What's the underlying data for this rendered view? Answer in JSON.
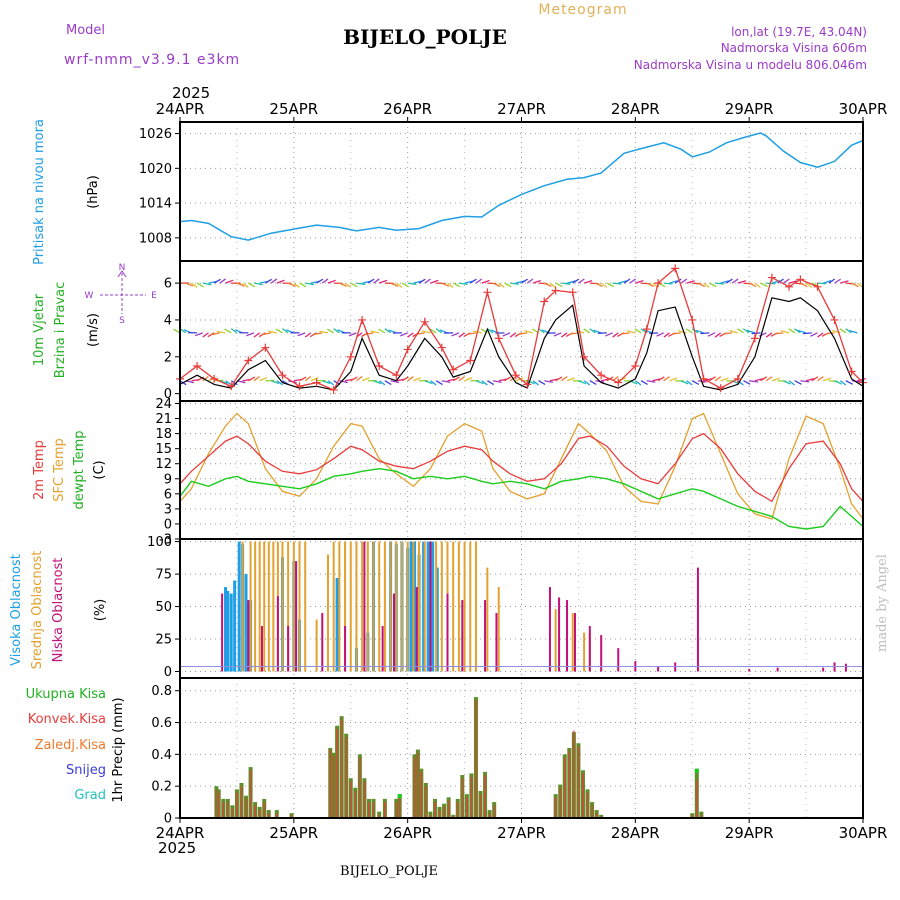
{
  "header": {
    "model_label": "Model",
    "model_name": "wrf-nmm_v3.9.1  e3km",
    "station_title": "BIJELO_POLJE",
    "meteogram_label": "Meteogram",
    "lonlat": "lon,lat (19.7E, 43.04N)",
    "elevation": "Nadmorska Visina 606m",
    "model_elevation": "Nadmorska Visina u modelu 806.046m",
    "year_top": "2025",
    "year_bottom": "2025",
    "footer_title": "BIJELO_POLJE",
    "credit": "made by Angel"
  },
  "colors": {
    "pressure": "#1e9fe6",
    "temp2m": "#e83c3c",
    "sfc": "#e3a12f",
    "dewpt": "#1ccc1c",
    "wind_label": "#22b022",
    "purple": "#9a3cc8",
    "high_cloud": "#1e9fe6",
    "mid_cloud": "#e3a12f",
    "low_cloud": "#c0127a",
    "precip_total": "#5e8f2a",
    "precip_conv": "#e83c3c",
    "precip_frozen": "#f07a2a",
    "snow": "#3c3cdc",
    "graupel": "#22c0c0"
  },
  "chart_data": [
    {
      "type": "line",
      "id": "pressure",
      "ylabel_name": "Pritisak na nivou mora",
      "ylabel_unit": "(hPa)",
      "ylim": [
        1004,
        1028
      ],
      "yticks": [
        1008,
        1014,
        1020,
        1026
      ],
      "x_days": [
        0,
        0.1,
        0.25,
        0.45,
        0.6,
        0.8,
        1.0,
        1.2,
        1.4,
        1.55,
        1.75,
        1.9,
        2.1,
        2.3,
        2.5,
        2.65,
        2.8,
        3.0,
        3.2,
        3.4,
        3.55,
        3.7,
        3.9,
        4.05,
        4.25,
        4.4,
        4.5,
        4.65,
        4.8,
        4.95,
        5.1,
        5.15,
        5.3,
        5.45,
        5.6,
        5.75,
        5.9,
        6.0
      ],
      "values": [
        1010.8,
        1011.0,
        1010.5,
        1008.2,
        1007.6,
        1008.8,
        1009.5,
        1010.2,
        1009.8,
        1009.2,
        1009.8,
        1009.3,
        1009.6,
        1011.0,
        1011.7,
        1011.6,
        1013.6,
        1015.5,
        1017.0,
        1018.1,
        1018.4,
        1019.2,
        1022.6,
        1023.4,
        1024.4,
        1023.3,
        1022.0,
        1022.8,
        1024.4,
        1025.3,
        1026.1,
        1025.6,
        1023.0,
        1021.0,
        1020.2,
        1021.2,
        1024.0,
        1024.8
      ]
    },
    {
      "type": "line",
      "id": "wind",
      "ylabel_name": "10m Vjetar",
      "ylabel_name2": "Brzina i Pravac",
      "ylabel_unit": "(m/s)",
      "compass": [
        "N",
        "E",
        "S",
        "W"
      ],
      "ylim": [
        -0.4,
        7.2
      ],
      "yticks": [
        0,
        2,
        4,
        6
      ],
      "x_days": [
        0,
        0.15,
        0.3,
        0.45,
        0.6,
        0.75,
        0.9,
        1.05,
        1.2,
        1.35,
        1.5,
        1.6,
        1.75,
        1.9,
        2.0,
        2.15,
        2.3,
        2.4,
        2.55,
        2.7,
        2.8,
        2.95,
        3.05,
        3.2,
        3.3,
        3.45,
        3.55,
        3.7,
        3.85,
        4.0,
        4.1,
        4.2,
        4.35,
        4.5,
        4.6,
        4.75,
        4.9,
        5.05,
        5.2,
        5.35,
        5.45,
        5.6,
        5.75,
        5.9,
        6.0
      ],
      "gust": [
        0.8,
        1.5,
        0.8,
        0.4,
        1.8,
        2.5,
        1.0,
        0.4,
        0.6,
        0.2,
        2.0,
        4.0,
        1.5,
        1.0,
        2.4,
        3.9,
        2.5,
        1.3,
        1.8,
        5.5,
        3.0,
        1.0,
        0.5,
        5.0,
        5.6,
        5.5,
        2.0,
        1.0,
        0.6,
        1.5,
        3.5,
        6.0,
        6.8,
        4.0,
        0.8,
        0.3,
        0.8,
        3.0,
        6.3,
        5.8,
        6.2,
        5.8,
        4.0,
        1.2,
        0.6
      ],
      "wind": [
        0.5,
        1.0,
        0.5,
        0.3,
        1.3,
        1.8,
        0.6,
        0.3,
        0.4,
        0.2,
        1.2,
        3.0,
        1.0,
        0.7,
        1.5,
        3.0,
        2.0,
        0.9,
        1.2,
        3.5,
        2.0,
        0.6,
        0.3,
        3.0,
        4.0,
        4.8,
        1.5,
        0.6,
        0.3,
        0.8,
        2.2,
        4.5,
        4.7,
        2.0,
        0.4,
        0.2,
        0.5,
        2.0,
        5.2,
        5.0,
        5.2,
        4.5,
        3.0,
        0.8,
        0.4
      ]
    },
    {
      "type": "line",
      "id": "temperature",
      "ylabel_t2m": "2m Temp",
      "ylabel_sfc": "SFC Temp",
      "ylabel_dew": "dewpt Temp",
      "ylabel_unit": "(C)",
      "ylim": [
        -3,
        24.5
      ],
      "yticks": [
        -3,
        0,
        3,
        6,
        9,
        12,
        15,
        18,
        21,
        24
      ],
      "x_days": [
        0,
        0.1,
        0.25,
        0.4,
        0.5,
        0.6,
        0.75,
        0.9,
        1.05,
        1.2,
        1.35,
        1.5,
        1.6,
        1.75,
        1.9,
        2.05,
        2.2,
        2.35,
        2.5,
        2.65,
        2.75,
        2.9,
        3.05,
        3.2,
        3.35,
        3.5,
        3.6,
        3.75,
        3.9,
        4.05,
        4.2,
        4.35,
        4.5,
        4.6,
        4.75,
        4.9,
        5.05,
        5.2,
        5.35,
        5.5,
        5.65,
        5.8,
        5.9,
        6.0
      ],
      "t2m": [
        8.0,
        10.5,
        13.5,
        16.5,
        17.5,
        16.0,
        12.5,
        10.5,
        10.0,
        10.8,
        13.0,
        15.5,
        14.8,
        12.5,
        11.5,
        11.0,
        12.5,
        14.5,
        15.5,
        14.8,
        12.5,
        10.0,
        8.5,
        9.0,
        12.0,
        17.0,
        17.5,
        15.5,
        11.5,
        9.0,
        8.0,
        12.0,
        17.0,
        18.0,
        15.0,
        10.0,
        6.5,
        4.5,
        11.0,
        16.0,
        16.5,
        12.0,
        7.0,
        4.5
      ],
      "sfc": [
        4.5,
        7.0,
        14.0,
        19.5,
        22.0,
        20.0,
        11.0,
        6.5,
        5.5,
        9.0,
        15.5,
        20.0,
        19.5,
        13.0,
        10.0,
        7.5,
        11.0,
        17.5,
        20.0,
        18.5,
        11.0,
        6.5,
        5.0,
        6.0,
        13.0,
        20.0,
        18.0,
        14.5,
        7.5,
        4.5,
        4.0,
        11.5,
        21.0,
        22.0,
        14.0,
        6.0,
        2.0,
        1.0,
        13.0,
        21.5,
        20.0,
        11.0,
        4.0,
        1.0
      ],
      "dewpt": [
        5.5,
        8.5,
        7.5,
        9.0,
        9.5,
        8.5,
        8.0,
        7.5,
        7.0,
        8.0,
        9.5,
        10.0,
        10.5,
        11.0,
        10.5,
        9.0,
        9.5,
        9.0,
        9.5,
        8.5,
        8.0,
        8.5,
        8.0,
        7.0,
        8.5,
        9.0,
        9.5,
        9.0,
        8.0,
        6.5,
        5.0,
        6.0,
        7.0,
        6.5,
        5.0,
        3.5,
        2.5,
        1.5,
        -0.5,
        -1.0,
        -0.5,
        3.5,
        1.5,
        -0.5
      ]
    },
    {
      "type": "bar",
      "id": "clouds",
      "ylabel_high": "Visoka Oblacnost",
      "ylabel_mid": "Srednja Oblacnost",
      "ylabel_low": "Niska Oblacnost",
      "ylabel_unit": "(%)",
      "ylim": [
        -5,
        102
      ],
      "yticks": [
        0,
        25,
        50,
        75,
        100
      ],
      "high_x": [
        0.4,
        0.42,
        0.45,
        0.48,
        0.52,
        0.55,
        0.58,
        0.62,
        0.9,
        1.0,
        1.05,
        1.38,
        1.55,
        1.65,
        1.7,
        1.85,
        1.9,
        1.95,
        2.0,
        2.03,
        2.06,
        2.1,
        2.14,
        2.18,
        2.22,
        2.26
      ],
      "high_v": [
        65,
        62,
        60,
        70,
        100,
        98,
        75,
        55,
        88,
        85,
        40,
        72,
        18,
        30,
        100,
        100,
        98,
        100,
        95,
        100,
        100,
        90,
        100,
        100,
        100,
        80
      ],
      "mid_x": [
        0.55,
        0.62,
        0.66,
        0.7,
        0.74,
        0.78,
        0.82,
        0.86,
        0.9,
        0.95,
        1.0,
        1.05,
        1.1,
        1.2,
        1.3,
        1.35,
        1.4,
        1.45,
        1.5,
        1.55,
        1.6,
        1.65,
        1.7,
        1.75,
        1.8,
        1.85,
        1.9,
        1.95,
        2.0,
        2.05,
        2.1,
        2.15,
        2.2,
        2.25,
        2.3,
        2.35,
        2.4,
        2.45,
        2.5,
        2.55,
        2.6,
        2.7,
        2.8,
        3.3,
        3.4,
        3.45,
        3.55,
        3.6
      ],
      "mid_v": [
        100,
        100,
        100,
        100,
        100,
        100,
        100,
        100,
        100,
        100,
        100,
        100,
        100,
        40,
        90,
        100,
        100,
        100,
        100,
        100,
        100,
        100,
        100,
        100,
        100,
        100,
        100,
        100,
        100,
        100,
        100,
        100,
        100,
        100,
        100,
        100,
        100,
        100,
        100,
        100,
        100,
        80,
        65,
        48,
        50,
        45,
        30,
        30
      ],
      "low_x": [
        0.37,
        0.6,
        0.72,
        0.86,
        0.95,
        1.02,
        1.25,
        1.45,
        1.62,
        1.78,
        1.88,
        2.08,
        2.2,
        2.35,
        2.48,
        2.68,
        2.78,
        3.25,
        3.33,
        3.4,
        3.47,
        3.6,
        3.7,
        3.85,
        4.0,
        4.2,
        4.35,
        4.55,
        5.0,
        5.25,
        5.65,
        5.75,
        5.85
      ],
      "low_v": [
        60,
        55,
        35,
        58,
        35,
        85,
        45,
        35,
        100,
        35,
        60,
        65,
        100,
        60,
        55,
        55,
        45,
        65,
        57,
        55,
        45,
        35,
        28,
        18,
        8,
        4,
        7,
        80,
        2,
        3,
        3,
        7,
        6
      ]
    },
    {
      "type": "bar",
      "id": "precip",
      "ylabel": "1hr Precip (mm)",
      "legend": [
        "Ukupna Kisa",
        "Konvek.Kisa",
        "Zaledj.Kisa",
        "Snijeg",
        "Grad"
      ],
      "ylim": [
        0,
        0.88
      ],
      "yticks": [
        0,
        0.2,
        0.4,
        0.6,
        0.8
      ],
      "x_days": [
        0.32,
        0.34,
        0.38,
        0.42,
        0.46,
        0.5,
        0.54,
        0.58,
        0.62,
        0.66,
        0.7,
        0.74,
        0.78,
        0.85,
        0.98,
        1.32,
        1.35,
        1.38,
        1.42,
        1.46,
        1.5,
        1.54,
        1.58,
        1.62,
        1.66,
        1.7,
        1.75,
        1.8,
        1.9,
        1.93,
        2.06,
        2.09,
        2.12,
        2.16,
        2.2,
        2.24,
        2.28,
        2.32,
        2.36,
        2.4,
        2.44,
        2.48,
        2.52,
        2.56,
        2.6,
        2.64,
        2.68,
        2.72,
        2.76,
        3.3,
        3.34,
        3.38,
        3.42,
        3.46,
        3.5,
        3.54,
        3.58,
        3.62,
        3.66,
        3.7,
        4.5,
        4.54,
        4.58
      ],
      "total": [
        0.2,
        0.18,
        0.12,
        0.12,
        0.08,
        0.18,
        0.22,
        0.14,
        0.32,
        0.1,
        0.07,
        0.12,
        0.05,
        0.05,
        0.03,
        0.44,
        0.41,
        0.58,
        0.64,
        0.53,
        0.25,
        0.19,
        0.4,
        0.25,
        0.12,
        0.12,
        0.04,
        0.12,
        0.12,
        0.15,
        0.4,
        0.43,
        0.31,
        0.22,
        0.04,
        0.12,
        0.07,
        0.09,
        0.13,
        0.02,
        0.12,
        0.27,
        0.15,
        0.28,
        0.76,
        0.17,
        0.29,
        0.05,
        0.1,
        0.15,
        0.21,
        0.4,
        0.44,
        0.54,
        0.47,
        0.3,
        0.18,
        0.1,
        0.05,
        0.02,
        0.03,
        0.31,
        0.04
      ],
      "convective": [
        0.18,
        0.16,
        0.1,
        0.1,
        0.06,
        0.16,
        0.2,
        0.12,
        0.3,
        0.08,
        0.05,
        0.1,
        0.03,
        0.03,
        0.02,
        0.43,
        0.39,
        0.56,
        0.62,
        0.51,
        0.23,
        0.17,
        0.38,
        0.23,
        0.1,
        0.1,
        0.02,
        0.1,
        0.1,
        0.13,
        0.38,
        0.41,
        0.29,
        0.2,
        0.02,
        0.1,
        0.05,
        0.07,
        0.11,
        0.01,
        0.1,
        0.25,
        0.13,
        0.26,
        0.74,
        0.15,
        0.27,
        0.03,
        0.08,
        0.13,
        0.19,
        0.38,
        0.42,
        0.55,
        0.45,
        0.28,
        0.16,
        0.08,
        0.03,
        0.01,
        0.02,
        0.24,
        0.02
      ],
      "graupel": [
        0,
        0,
        0,
        0,
        0,
        0,
        0,
        0,
        0,
        0,
        0,
        0,
        0,
        0,
        0,
        0,
        0,
        0,
        0,
        0,
        0,
        0,
        0,
        0,
        0,
        0,
        0,
        0,
        0,
        0.15,
        0,
        0,
        0,
        0,
        0,
        0,
        0,
        0,
        0,
        0,
        0,
        0,
        0,
        0,
        0,
        0,
        0,
        0,
        0,
        0,
        0,
        0,
        0,
        0,
        0,
        0,
        0,
        0,
        0,
        0,
        0,
        0.31,
        0
      ]
    }
  ],
  "x_axis": {
    "tick_days": [
      0,
      1,
      2,
      3,
      4,
      5,
      6
    ],
    "labels": [
      "24APR",
      "25APR",
      "26APR",
      "27APR",
      "28APR",
      "29APR",
      "30APR"
    ]
  }
}
